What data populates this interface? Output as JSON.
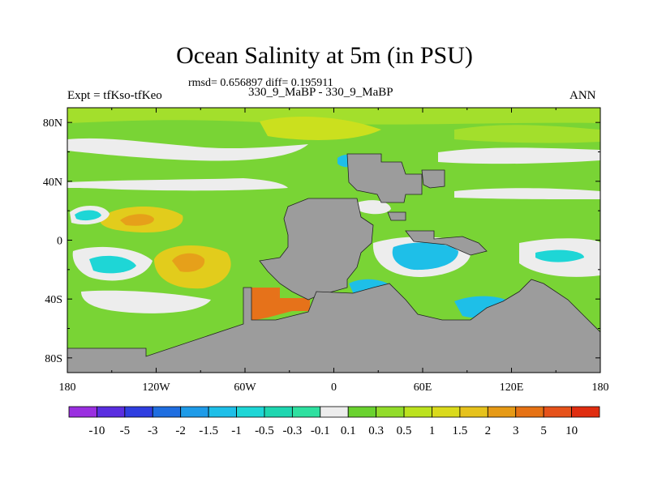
{
  "chart_data": {
    "type": "heatmap",
    "title": "Ocean Salinity at 5m (in PSU)",
    "stats_line": "rmsd= 0.656897 diff= 0.195911",
    "left_label": "Expt = tfKso-tfKeo",
    "center_label": "330_9_MaBP - 330_9_MaBP",
    "right_label": "ANN",
    "x_range": [
      -180,
      180
    ],
    "y_range": [
      -90,
      90
    ],
    "x_ticks": [
      {
        "value": -180,
        "label": "180"
      },
      {
        "value": -120,
        "label": "120W"
      },
      {
        "value": -60,
        "label": "60W"
      },
      {
        "value": 0,
        "label": "0"
      },
      {
        "value": 60,
        "label": "60E"
      },
      {
        "value": 120,
        "label": "120E"
      },
      {
        "value": 180,
        "label": "180"
      }
    ],
    "y_ticks": [
      {
        "value": 80,
        "label": "80N"
      },
      {
        "value": 40,
        "label": "40N"
      },
      {
        "value": 0,
        "label": "0"
      },
      {
        "value": -40,
        "label": "40S"
      },
      {
        "value": -80,
        "label": "80S"
      }
    ],
    "colorbar": {
      "levels": [
        "-10",
        "-5",
        "-3",
        "-2",
        "-1.5",
        "-1",
        "-0.5",
        "-0.3",
        "-0.1",
        "0.1",
        "0.3",
        "0.5",
        "1",
        "1.5",
        "2",
        "3",
        "5",
        "10"
      ],
      "colors": [
        "#9a2fe0",
        "#5a2ee0",
        "#2f3ee0",
        "#1f6ee0",
        "#1e9be8",
        "#1ebfe8",
        "#1ed6d6",
        "#1ed6b0",
        "#2ee0a0",
        "#ededed",
        "#6ad22f",
        "#92dc2a",
        "#bce21f",
        "#dada1c",
        "#e6c21c",
        "#e69a16",
        "#e67214",
        "#e6521a",
        "#e02d10"
      ]
    },
    "land_color": "#9c9c9c",
    "background_field_color": "#79d435"
  }
}
